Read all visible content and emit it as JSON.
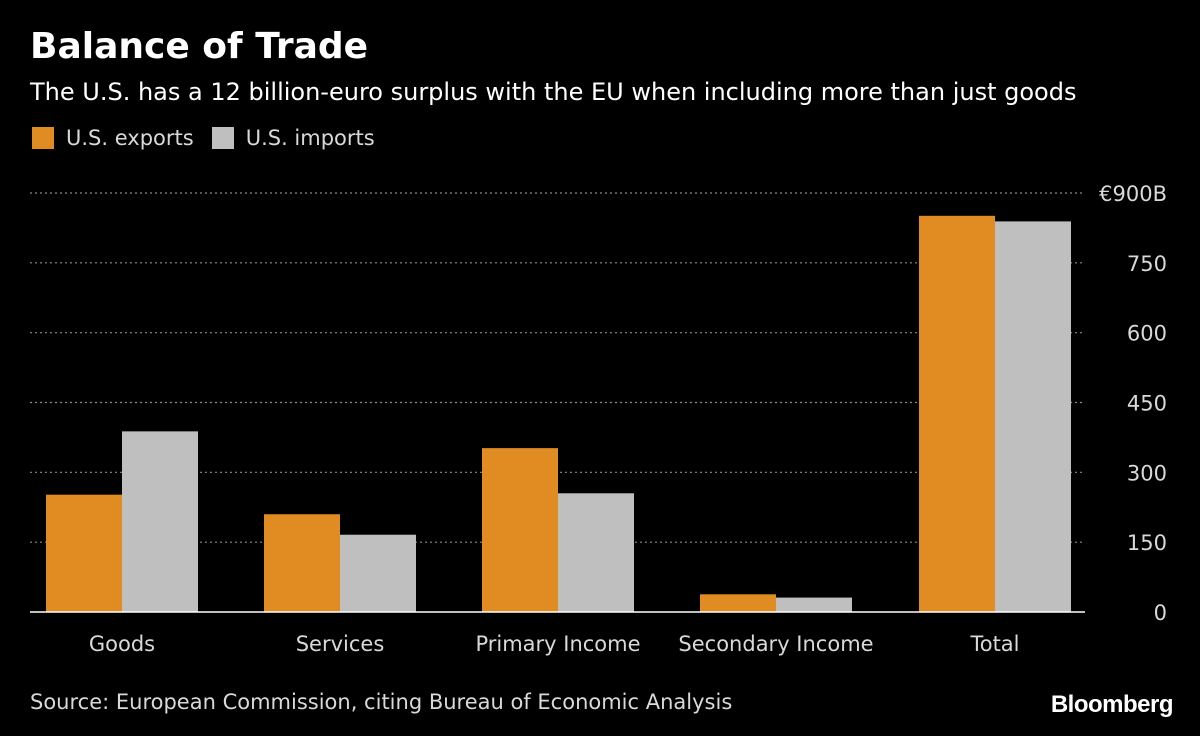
{
  "colors": {
    "background": "#000000",
    "exports": "#e08c22",
    "imports": "#bfbfbf",
    "grid": "#8a8a8a",
    "text": "#ffffff",
    "muted_text": "#d9d9d9"
  },
  "header": {
    "title": "Balance of Trade",
    "subtitle": "The U.S. has a 12 billion-euro surplus with the EU when including more than just goods"
  },
  "legend": {
    "items": [
      {
        "label": "U.S. exports",
        "color": "#e08c22"
      },
      {
        "label": "U.S. imports",
        "color": "#bfbfbf"
      }
    ]
  },
  "footer": {
    "source": "Source: European Commission, citing Bureau of Economic Analysis",
    "brand": "Bloomberg"
  },
  "chart_data": {
    "type": "bar",
    "title": "Balance of Trade",
    "subtitle": "The U.S. has a 12 billion-euro surplus with the EU when including more than just goods",
    "categories": [
      "Goods",
      "Services",
      "Primary Income",
      "Secondary Income",
      "Total"
    ],
    "series": [
      {
        "name": "U.S. exports",
        "color": "#e08c22",
        "values": [
          252,
          210,
          352,
          38,
          851
        ]
      },
      {
        "name": "U.S. imports",
        "color": "#bfbfbf",
        "values": [
          388,
          166,
          255,
          31,
          839
        ]
      }
    ],
    "ylim": [
      0,
      900
    ],
    "yticks": [
      0,
      150,
      300,
      450,
      600,
      750,
      900
    ],
    "ytick_labels": [
      "0",
      "150",
      "300",
      "450",
      "600",
      "750",
      "€900B"
    ],
    "xlabel": "",
    "ylabel": "",
    "grid": true,
    "legend_position": "top-left"
  }
}
